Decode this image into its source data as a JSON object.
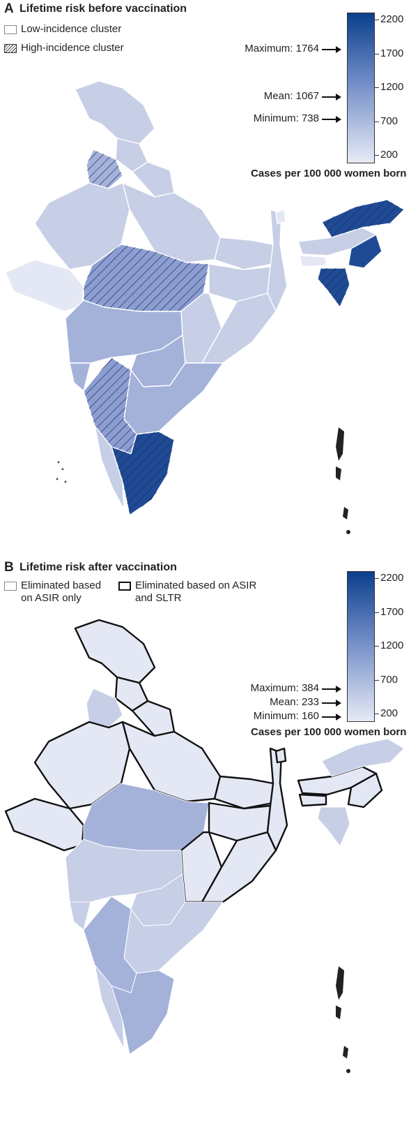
{
  "colors": {
    "low": "#e4e8f4",
    "light": "#c7cfe7",
    "mid": "#a4b2da",
    "midDark": "#8b9dd1",
    "dark": "#1f4b96",
    "outline": "#ffffff"
  },
  "panel_a": {
    "letter": "A",
    "title": "Lifetime risk before vaccination",
    "legend": [
      "Low-incidence cluster",
      "High-incidence cluster"
    ],
    "colorbar": {
      "ticks": [
        "2200",
        "1700",
        "1200",
        "700",
        "200"
      ],
      "range": [
        200,
        2200
      ],
      "caption": "Cases per 100 000 women born"
    },
    "stats": [
      {
        "label": "Maximum: 1764",
        "value": 1764
      },
      {
        "label": "Mean: 1067",
        "value": 1067
      },
      {
        "label": "Minimum: 738",
        "value": 738
      }
    ]
  },
  "panel_b": {
    "letter": "B",
    "title": "Lifetime risk after vaccination",
    "legend": [
      "Eliminated based on ASIR only",
      "Eliminated based on ASIR and SLTR"
    ],
    "legend_lines": [
      [
        "Eliminated based",
        "on ASIR only"
      ],
      [
        "Eliminated based on ASIR",
        "and SLTR"
      ]
    ],
    "colorbar": {
      "ticks": [
        "2200",
        "1700",
        "1200",
        "700",
        "200"
      ],
      "range": [
        200,
        2200
      ],
      "caption": "Cases per 100 000 women born"
    },
    "stats": [
      {
        "label": "Maximum: 384",
        "value": 384
      },
      {
        "label": "Mean: 233",
        "value": 233
      },
      {
        "label": "Minimum: 160",
        "value": 160
      }
    ]
  }
}
